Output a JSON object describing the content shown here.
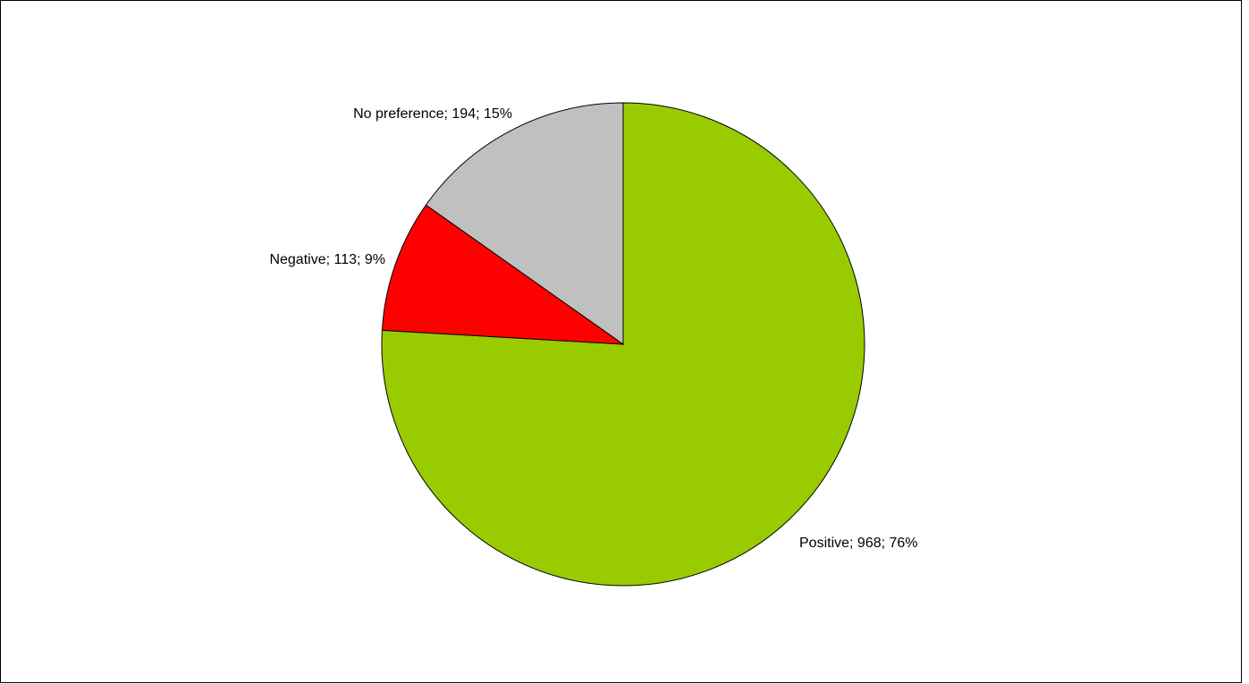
{
  "chart_data": {
    "type": "pie",
    "categories": [
      "Positive",
      "Negative",
      "No preference"
    ],
    "values": [
      968,
      113,
      194
    ],
    "percent_labels": [
      "76%",
      "9%",
      "15%"
    ],
    "labels": [
      "Positive; 968; 76%",
      "Negative; 113; 9%",
      "No preference; 194; 15%"
    ],
    "colors": [
      "#99CC00",
      "#FF0000",
      "#C0C0C0"
    ],
    "start": "12 o'clock",
    "direction": "clockwise",
    "legend": "none",
    "title": ""
  }
}
